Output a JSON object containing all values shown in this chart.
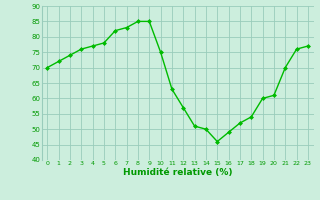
{
  "x": [
    0,
    1,
    2,
    3,
    4,
    5,
    6,
    7,
    8,
    9,
    10,
    11,
    12,
    13,
    14,
    15,
    16,
    17,
    18,
    19,
    20,
    21,
    22,
    23
  ],
  "y": [
    70,
    72,
    74,
    76,
    77,
    78,
    82,
    83,
    85,
    85,
    75,
    63,
    57,
    51,
    50,
    46,
    49,
    52,
    54,
    60,
    61,
    70,
    76,
    77
  ],
  "xlabel": "Humidité relative (%)",
  "ylim": [
    40,
    90
  ],
  "yticks": [
    40,
    45,
    50,
    55,
    60,
    65,
    70,
    75,
    80,
    85,
    90
  ],
  "xticks": [
    0,
    1,
    2,
    3,
    4,
    5,
    6,
    7,
    8,
    9,
    10,
    11,
    12,
    13,
    14,
    15,
    16,
    17,
    18,
    19,
    20,
    21,
    22,
    23
  ],
  "line_color": "#00bb00",
  "marker_color": "#00bb00",
  "bg_color": "#cceedd",
  "grid_color": "#99ccbb",
  "text_color": "#009900",
  "tick_color": "#009900"
}
